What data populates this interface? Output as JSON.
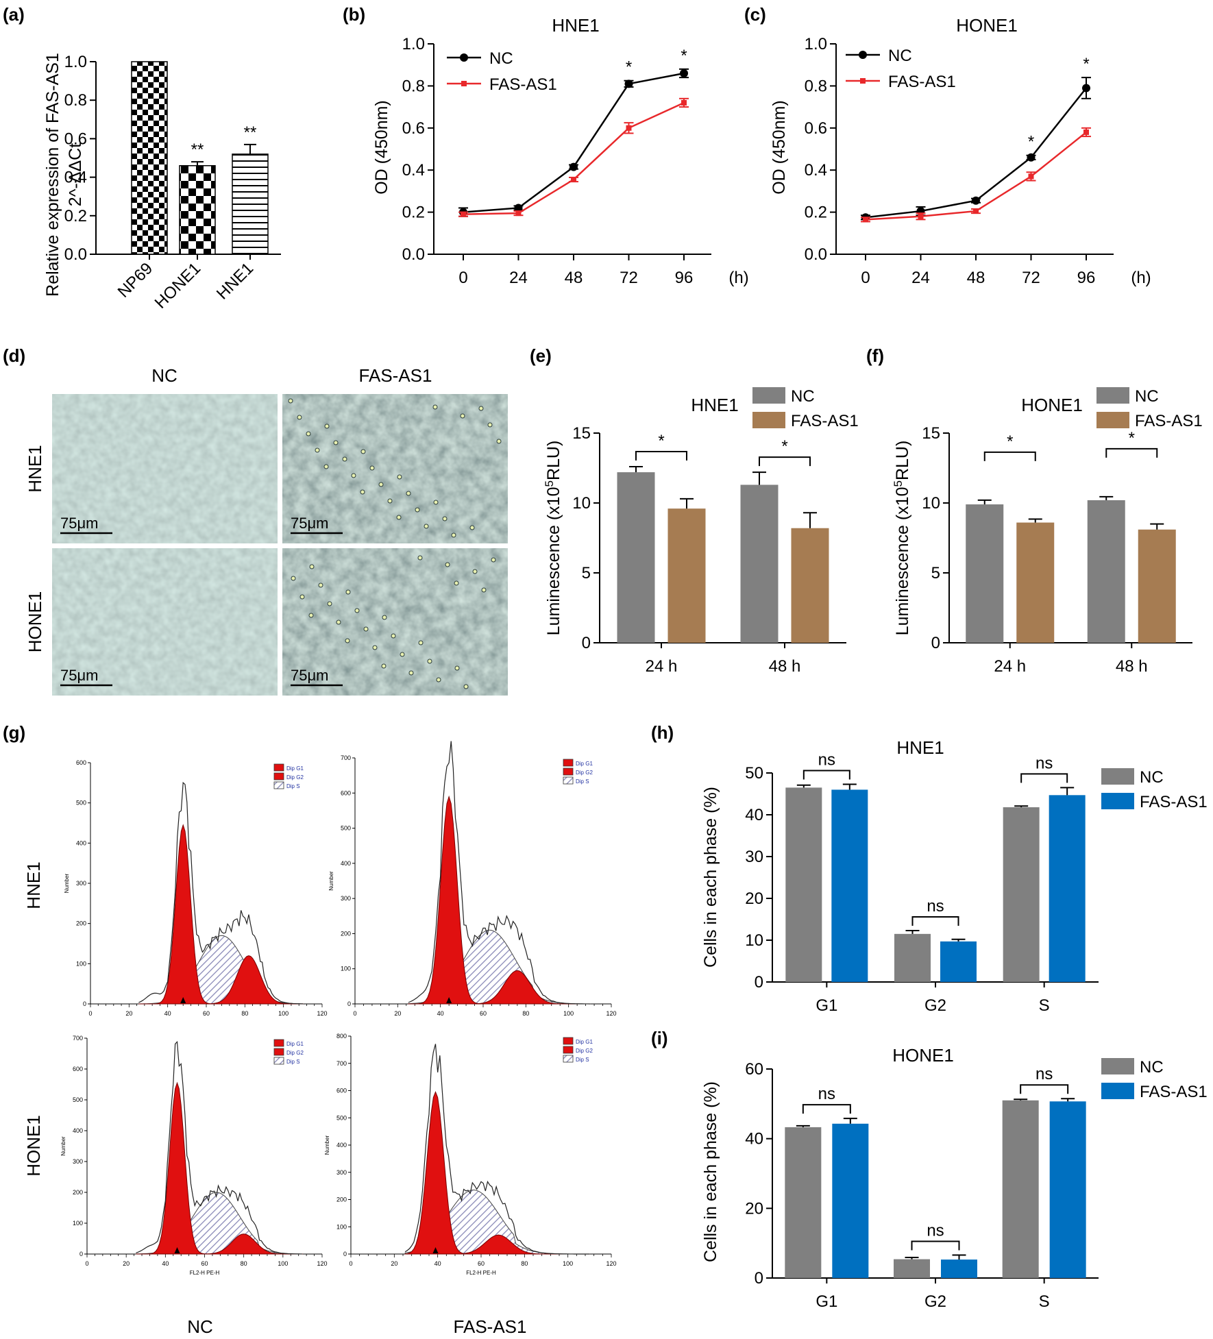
{
  "chart_data": [
    {
      "id": "a",
      "panel_label": "(a)",
      "type": "bar",
      "title": "",
      "ylabel": "Relative expression of FAS-AS1",
      "ylabel2": "2^-ΔΔCt",
      "categories": [
        "NP69",
        "HONE1",
        "HNE1"
      ],
      "values": [
        1.0,
        0.46,
        0.52
      ],
      "errors": [
        0,
        0.02,
        0.05
      ],
      "annotations": [
        "",
        "**",
        "**"
      ],
      "ylim": [
        0,
        1.0
      ],
      "yticks": [
        0.0,
        0.2,
        0.4,
        0.6,
        0.8,
        1.0
      ]
    },
    {
      "id": "b",
      "panel_label": "(b)",
      "type": "line",
      "title": "HNE1",
      "ylabel": "OD (450nm)",
      "xunit": "(h)",
      "x": [
        0,
        24,
        48,
        72,
        96
      ],
      "series": [
        {
          "name": "NC",
          "color": "#000000",
          "values": [
            0.2,
            0.22,
            0.415,
            0.81,
            0.86
          ],
          "errors": [
            0.02,
            0.01,
            0.01,
            0.015,
            0.02
          ]
        },
        {
          "name": "FAS-AS1",
          "color": "#e8282b",
          "values": [
            0.19,
            0.195,
            0.355,
            0.6,
            0.72
          ],
          "errors": [
            0.01,
            0.01,
            0.01,
            0.025,
            0.02
          ]
        }
      ],
      "annotations": [
        {
          "x": 72,
          "text": "*"
        },
        {
          "x": 96,
          "text": "*"
        }
      ],
      "ylim": [
        0,
        1.0
      ],
      "yticks": [
        0.0,
        0.2,
        0.4,
        0.6,
        0.8,
        1.0
      ]
    },
    {
      "id": "c",
      "panel_label": "(c)",
      "type": "line",
      "title": "HONE1",
      "ylabel": "OD (450nm)",
      "xunit": "(h)",
      "x": [
        0,
        24,
        48,
        72,
        96
      ],
      "series": [
        {
          "name": "NC",
          "color": "#000000",
          "values": [
            0.175,
            0.205,
            0.255,
            0.46,
            0.79
          ],
          "errors": [
            0.01,
            0.02,
            0.01,
            0.01,
            0.05
          ]
        },
        {
          "name": "FAS-AS1",
          "color": "#e8282b",
          "values": [
            0.165,
            0.18,
            0.205,
            0.37,
            0.58
          ],
          "errors": [
            0.01,
            0.015,
            0.01,
            0.02,
            0.02
          ]
        }
      ],
      "annotations": [
        {
          "x": 72,
          "text": "*"
        },
        {
          "x": 96,
          "text": "*"
        }
      ],
      "ylim": [
        0,
        1.0
      ],
      "yticks": [
        0.0,
        0.2,
        0.4,
        0.6,
        0.8,
        1.0
      ]
    },
    {
      "id": "d",
      "panel_label": "(d)",
      "type": "image_grid",
      "columns": [
        "NC",
        "FAS-AS1"
      ],
      "rows": [
        "HNE1",
        "HONE1"
      ],
      "scale_bar": "75μm"
    },
    {
      "id": "e",
      "panel_label": "(e)",
      "type": "bar",
      "title": "HNE1",
      "ylabel_prefix": "Luminescence (x10",
      "ylabel_sup": "5",
      "ylabel_suffix": "RLU)",
      "categories": [
        "24 h",
        "48 h"
      ],
      "series": [
        {
          "name": "NC",
          "color": "#808080",
          "values": [
            12.2,
            11.3
          ],
          "errors": [
            0.4,
            0.9
          ]
        },
        {
          "name": "FAS-AS1",
          "color": "#a67c52",
          "values": [
            9.6,
            8.2
          ],
          "errors": [
            0.7,
            1.1
          ]
        }
      ],
      "annotations": [
        "*",
        "*"
      ],
      "ylim": [
        0,
        15
      ],
      "yticks": [
        0,
        5,
        10,
        15
      ]
    },
    {
      "id": "f",
      "panel_label": "(f)",
      "type": "bar",
      "title": "HONE1",
      "ylabel_prefix": "Luminescence (x10",
      "ylabel_sup": "5",
      "ylabel_suffix": "RLU)",
      "categories": [
        "24 h",
        "48 h"
      ],
      "series": [
        {
          "name": "NC",
          "color": "#808080",
          "values": [
            9.9,
            10.2
          ],
          "errors": [
            0.3,
            0.25
          ]
        },
        {
          "name": "FAS-AS1",
          "color": "#a67c52",
          "values": [
            8.6,
            8.1
          ],
          "errors": [
            0.25,
            0.4
          ]
        }
      ],
      "annotations": [
        "*",
        "*"
      ],
      "ylim": [
        0,
        15
      ],
      "yticks": [
        0,
        5,
        10,
        15
      ]
    },
    {
      "id": "g",
      "panel_label": "(g)",
      "type": "histogram_grid",
      "rows": [
        "HNE1",
        "HONE1"
      ],
      "columns": [
        "NC",
        "FAS-AS1"
      ],
      "xlabel": "FL2-H PE-H",
      "ylabel": "Number",
      "legend": [
        "Dip G1",
        "Dip G2",
        "Dip S"
      ],
      "xticks": [
        0,
        20,
        40,
        60,
        80,
        100,
        120
      ],
      "subplots": [
        {
          "ymax": 600,
          "yticks": [
            0,
            100,
            200,
            300,
            400,
            500,
            600
          ],
          "g1_peak": 48,
          "g1_height": 445,
          "g2_peak": 82,
          "g2_height": 120,
          "s_height": 170
        },
        {
          "ymax": 700,
          "yticks": [
            0,
            100,
            200,
            300,
            400,
            500,
            600,
            700
          ],
          "g1_peak": 44,
          "g1_height": 590,
          "g2_peak": 76,
          "g2_height": 95,
          "s_height": 210
        },
        {
          "ymax": 700,
          "yticks": [
            0,
            100,
            200,
            300,
            400,
            500,
            600,
            700
          ],
          "g1_peak": 46,
          "g1_height": 555,
          "g2_peak": 80,
          "g2_height": 65,
          "s_height": 200
        },
        {
          "ymax": 800,
          "yticks": [
            0,
            100,
            200,
            300,
            400,
            500,
            600,
            700,
            800
          ],
          "g1_peak": 39,
          "g1_height": 595,
          "g2_peak": 68,
          "g2_height": 70,
          "s_height": 235
        }
      ]
    },
    {
      "id": "h",
      "panel_label": "(h)",
      "type": "bar",
      "title": "HNE1",
      "ylabel": "Cells in each phase (%)",
      "categories": [
        "G1",
        "G2",
        "S"
      ],
      "series": [
        {
          "name": "NC",
          "color": "#808080",
          "values": [
            46.5,
            11.5,
            41.8
          ],
          "errors": [
            0.6,
            0.8,
            0.3
          ]
        },
        {
          "name": "FAS-AS1",
          "color": "#0070c0",
          "values": [
            46.0,
            9.7,
            44.7
          ],
          "errors": [
            1.3,
            0.5,
            1.8
          ]
        }
      ],
      "annotations": [
        "ns",
        "ns",
        "ns"
      ],
      "ylim": [
        0,
        50
      ],
      "yticks": [
        0,
        10,
        20,
        30,
        40,
        50
      ]
    },
    {
      "id": "i",
      "panel_label": "(i)",
      "type": "bar",
      "title": "HONE1",
      "ylabel": "Cells in each phase (%)",
      "categories": [
        "G1",
        "G2",
        "S"
      ],
      "series": [
        {
          "name": "NC",
          "color": "#808080",
          "values": [
            43.3,
            5.4,
            51.0
          ],
          "errors": [
            0.4,
            0.5,
            0.3
          ]
        },
        {
          "name": "FAS-AS1",
          "color": "#0070c0",
          "values": [
            44.3,
            5.3,
            50.7
          ],
          "errors": [
            1.5,
            1.3,
            0.8
          ]
        }
      ],
      "annotations": [
        "ns",
        "ns",
        "ns"
      ],
      "ylim": [
        0,
        60
      ],
      "yticks": [
        0,
        20,
        40,
        60
      ]
    }
  ]
}
